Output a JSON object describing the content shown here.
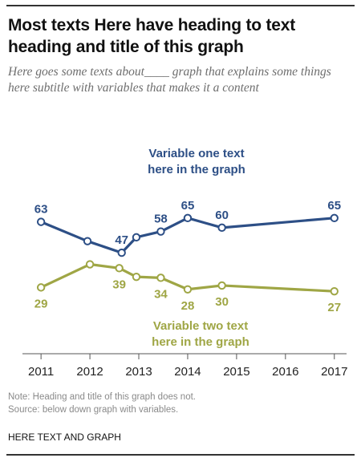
{
  "header": {
    "title": "Most texts Here have heading to text heading and title of this graph",
    "subtitle": "Here goes some texts about____ graph that explains some things here subtitle with variables that makes it a content"
  },
  "chart_data": {
    "type": "line",
    "xlabel": "",
    "ylabel": "",
    "x_ticks": [
      2011,
      2012,
      2013,
      2014,
      2015,
      2016,
      2017
    ],
    "xlim": [
      2010.85,
      2017.25
    ],
    "ylim": [
      20,
      72
    ],
    "grid": false,
    "legend": "inline labels",
    "series": [
      {
        "name": "Variable one text here in the graph",
        "color": "#2d4f86",
        "points": [
          {
            "x": 2011.0,
            "y": 63,
            "label": "63"
          },
          {
            "x": 2011.95,
            "y": 53
          },
          {
            "x": 2012.65,
            "y": 47,
            "label": "47"
          },
          {
            "x": 2012.95,
            "y": 55
          },
          {
            "x": 2013.45,
            "y": 58,
            "label": "58"
          },
          {
            "x": 2014.0,
            "y": 65,
            "label": "65"
          },
          {
            "x": 2014.7,
            "y": 60,
            "label": "60"
          },
          {
            "x": 2017.0,
            "y": 65,
            "label": "65"
          }
        ]
      },
      {
        "name": "Variable two text here in the graph",
        "color": "#9fa645",
        "points": [
          {
            "x": 2011.0,
            "y": 29,
            "label": "29"
          },
          {
            "x": 2012.0,
            "y": 41
          },
          {
            "x": 2012.6,
            "y": 39,
            "label": "39"
          },
          {
            "x": 2012.95,
            "y": 34.5
          },
          {
            "x": 2013.45,
            "y": 34,
            "label": "34"
          },
          {
            "x": 2014.0,
            "y": 28,
            "label": "28"
          },
          {
            "x": 2014.7,
            "y": 30,
            "label": "30"
          },
          {
            "x": 2017.0,
            "y": 27,
            "label": "27"
          }
        ]
      }
    ]
  },
  "footer": {
    "note": "Note: Heading and title of this graph does not.",
    "source": "Source: below down graph with variables.",
    "credit": "HERE TEXT AND GRAPH"
  }
}
